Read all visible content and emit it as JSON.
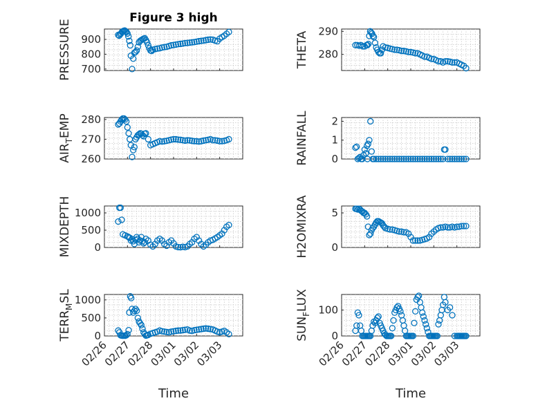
{
  "figure": {
    "title": "Figure 3 high",
    "xlabel": "Time",
    "x_ticks": [
      "02/26",
      "02/27",
      "02/28",
      "03/01",
      "03/02",
      "03/03"
    ]
  },
  "chart_data": [
    {
      "type": "scatter",
      "panel": "left-1",
      "ylabel": "PRESSURE",
      "ylim": [
        690,
        970
      ],
      "yticks": [
        700,
        800,
        900
      ],
      "xlim": [
        0,
        6
      ],
      "x": [
        0.6,
        0.64,
        0.68,
        0.72,
        0.76,
        0.8,
        0.84,
        0.88,
        0.92,
        0.96,
        1.0,
        1.04,
        1.08,
        1.12,
        1.15,
        1.2,
        1.25,
        1.3,
        1.35,
        1.4,
        1.45,
        1.5,
        1.55,
        1.6,
        1.65,
        1.7,
        1.75,
        1.8,
        1.85,
        1.9,
        1.95,
        2.0,
        2.05,
        2.1,
        2.2,
        2.3,
        2.4,
        2.5,
        2.6,
        2.7,
        2.8,
        2.9,
        3.0,
        3.1,
        3.2,
        3.3,
        3.4,
        3.5,
        3.6,
        3.7,
        3.8,
        3.9,
        4.0,
        4.1,
        4.2,
        4.3,
        4.4,
        4.5,
        4.6,
        4.7,
        4.8,
        4.9,
        5.0,
        5.1,
        5.2,
        5.3,
        5.4
      ],
      "y": [
        930,
        925,
        935,
        940,
        950,
        955,
        958,
        960,
        955,
        950,
        940,
        920,
        890,
        860,
        790,
        700,
        770,
        810,
        815,
        825,
        850,
        880,
        890,
        895,
        900,
        905,
        908,
        895,
        880,
        860,
        840,
        825,
        822,
        830,
        835,
        838,
        840,
        845,
        848,
        850,
        855,
        860,
        862,
        865,
        868,
        870,
        872,
        875,
        876,
        878,
        880,
        882,
        885,
        888,
        890,
        892,
        895,
        898,
        900,
        898,
        892,
        888,
        905,
        915,
        925,
        938,
        950
      ]
    },
    {
      "type": "scatter",
      "panel": "right-1",
      "ylabel": "THETA",
      "ylim": [
        273,
        291
      ],
      "yticks": [
        280,
        290
      ],
      "xlim": [
        0,
        6
      ],
      "x": [
        0.6,
        0.68,
        0.76,
        0.84,
        0.92,
        1.0,
        1.08,
        1.12,
        1.16,
        1.2,
        1.24,
        1.28,
        1.32,
        1.36,
        1.4,
        1.45,
        1.5,
        1.55,
        1.6,
        1.65,
        1.7,
        1.75,
        1.8,
        1.9,
        2.0,
        2.1,
        2.2,
        2.3,
        2.4,
        2.5,
        2.6,
        2.7,
        2.8,
        2.9,
        3.0,
        3.1,
        3.2,
        3.3,
        3.4,
        3.5,
        3.6,
        3.7,
        3.8,
        3.9,
        4.0,
        4.1,
        4.2,
        4.3,
        4.4,
        4.5,
        4.6,
        4.7,
        4.8,
        4.9,
        5.0,
        5.1,
        5.2,
        5.3,
        5.4
      ],
      "y": [
        284,
        284,
        283.8,
        284,
        283.5,
        283.5,
        284,
        284,
        284.5,
        288,
        290,
        289.5,
        289,
        288,
        287.5,
        285,
        283,
        282,
        281,
        280.5,
        280.5,
        282,
        283.5,
        283,
        282.8,
        282.5,
        282.3,
        282,
        282,
        281.8,
        281.5,
        281.5,
        281.3,
        281,
        281,
        280.8,
        280.5,
        280.5,
        280,
        279.5,
        279,
        279,
        278.5,
        278,
        278,
        277.5,
        277,
        277,
        276.5,
        277,
        277,
        276.8,
        276.5,
        276.5,
        276.5,
        276,
        275.5,
        275,
        274
      ]
    },
    {
      "type": "scatter",
      "panel": "left-2",
      "ylabel": "AIR_TEMP",
      "ylim": [
        260,
        281
      ],
      "yticks": [
        260,
        270,
        280
      ],
      "xlim": [
        0,
        6
      ],
      "x": [
        0.6,
        0.65,
        0.7,
        0.75,
        0.8,
        0.85,
        0.9,
        0.95,
        1.0,
        1.05,
        1.1,
        1.15,
        1.2,
        1.25,
        1.3,
        1.35,
        1.4,
        1.45,
        1.5,
        1.55,
        1.6,
        1.65,
        1.7,
        1.75,
        1.8,
        1.9,
        2.0,
        2.1,
        2.2,
        2.3,
        2.4,
        2.5,
        2.6,
        2.7,
        2.8,
        2.9,
        3.0,
        3.1,
        3.2,
        3.3,
        3.4,
        3.5,
        3.6,
        3.7,
        3.8,
        3.9,
        4.0,
        4.1,
        4.2,
        4.3,
        4.4,
        4.5,
        4.6,
        4.7,
        4.8,
        4.9,
        5.0,
        5.1,
        5.2,
        5.3,
        5.4
      ],
      "y": [
        277.5,
        278,
        279,
        280,
        280.5,
        280.5,
        280,
        279,
        276,
        273,
        270,
        267,
        261,
        264.5,
        266,
        270,
        271,
        272,
        272.5,
        273,
        272.8,
        272,
        271.5,
        272.8,
        273,
        270,
        267,
        267.5,
        268,
        268.5,
        269,
        268.8,
        269,
        269.2,
        269.5,
        269.8,
        270,
        270,
        269.8,
        269.7,
        269.5,
        269.3,
        269.5,
        269.4,
        269.2,
        269,
        269,
        268.8,
        269,
        269.3,
        269.5,
        269.7,
        270,
        269.5,
        269.5,
        269.3,
        269,
        269,
        269.2,
        269.5,
        270
      ]
    },
    {
      "type": "scatter",
      "panel": "right-2",
      "ylabel": "RAINFALL",
      "ylim": [
        0,
        2.2
      ],
      "yticks": [
        0,
        1,
        2
      ],
      "xlim": [
        0,
        6
      ],
      "x": [
        0.6,
        0.65,
        0.7,
        0.75,
        0.8,
        0.85,
        0.9,
        0.95,
        1.0,
        1.05,
        1.1,
        1.12,
        1.15,
        1.2,
        1.25,
        1.3,
        1.35,
        1.4,
        1.5,
        1.6,
        1.7,
        1.8,
        1.9,
        2.0,
        2.1,
        2.2,
        2.3,
        2.4,
        2.5,
        2.6,
        2.7,
        2.8,
        2.9,
        3.0,
        3.1,
        3.2,
        3.3,
        3.4,
        3.5,
        3.6,
        3.7,
        3.8,
        3.9,
        4.0,
        4.1,
        4.2,
        4.3,
        4.4,
        4.45,
        4.5,
        4.6,
        4.7,
        4.8,
        4.9,
        5.0,
        5.1,
        5.2,
        5.3,
        5.4
      ],
      "y": [
        0.6,
        0.65,
        0,
        0.05,
        0.1,
        0,
        0,
        0.2,
        0.5,
        0.3,
        0.7,
        0,
        0.8,
        1.0,
        2.0,
        0.4,
        0,
        0,
        0,
        0,
        0,
        0,
        0,
        0,
        0,
        0,
        0,
        0,
        0,
        0,
        0,
        0,
        0,
        0,
        0,
        0,
        0,
        0,
        0,
        0,
        0,
        0,
        0,
        0,
        0,
        0,
        0,
        0,
        0.5,
        0.5,
        0,
        0,
        0,
        0,
        0,
        0,
        0,
        0,
        0
      ]
    },
    {
      "type": "scatter",
      "panel": "left-3",
      "ylabel": "MIXDEPTH",
      "ylim": [
        0,
        1200
      ],
      "yticks": [
        0,
        500,
        1000
      ],
      "xlim": [
        0,
        6
      ],
      "x": [
        0.6,
        0.65,
        0.7,
        0.75,
        0.8,
        0.9,
        1.0,
        1.05,
        1.1,
        1.15,
        1.2,
        1.25,
        1.3,
        1.35,
        1.4,
        1.45,
        1.5,
        1.55,
        1.6,
        1.65,
        1.7,
        1.75,
        1.8,
        1.9,
        2.0,
        2.1,
        2.2,
        2.3,
        2.4,
        2.5,
        2.6,
        2.7,
        2.8,
        2.9,
        3.0,
        3.1,
        3.2,
        3.3,
        3.4,
        3.5,
        3.6,
        3.7,
        3.8,
        3.9,
        4.0,
        4.1,
        4.2,
        4.3,
        4.4,
        4.5,
        4.6,
        4.7,
        4.8,
        4.9,
        5.0,
        5.1,
        5.2,
        5.3,
        5.4
      ],
      "y": [
        750,
        1150,
        1150,
        800,
        380,
        350,
        320,
        300,
        280,
        200,
        240,
        180,
        100,
        220,
        300,
        250,
        150,
        200,
        300,
        180,
        120,
        150,
        250,
        200,
        80,
        30,
        100,
        200,
        250,
        200,
        100,
        50,
        150,
        200,
        120,
        30,
        10,
        5,
        20,
        10,
        30,
        100,
        150,
        250,
        300,
        200,
        100,
        30,
        80,
        150,
        200,
        220,
        260,
        300,
        350,
        400,
        500,
        600,
        650
      ]
    },
    {
      "type": "scatter",
      "panel": "right-3",
      "ylabel": "H2OMIXRA",
      "ylim": [
        0,
        6
      ],
      "yticks": [
        0,
        5
      ],
      "xlim": [
        0,
        6
      ],
      "x": [
        0.6,
        0.65,
        0.7,
        0.75,
        0.8,
        0.85,
        0.9,
        0.95,
        1.0,
        1.05,
        1.1,
        1.15,
        1.2,
        1.25,
        1.3,
        1.35,
        1.4,
        1.45,
        1.5,
        1.55,
        1.6,
        1.65,
        1.7,
        1.75,
        1.8,
        1.85,
        1.9,
        2.0,
        2.1,
        2.2,
        2.3,
        2.4,
        2.5,
        2.6,
        2.7,
        2.8,
        2.9,
        3.0,
        3.1,
        3.2,
        3.3,
        3.4,
        3.5,
        3.6,
        3.7,
        3.8,
        3.9,
        4.0,
        4.1,
        4.2,
        4.3,
        4.4,
        4.5,
        4.6,
        4.7,
        4.8,
        4.9,
        5.0,
        5.1,
        5.2,
        5.3,
        5.4
      ],
      "y": [
        5.6,
        5.6,
        5.5,
        5.6,
        5.5,
        5.3,
        5.2,
        5.0,
        5.0,
        4.8,
        4.5,
        3.0,
        1.8,
        2.0,
        2.5,
        2.8,
        3.0,
        3.3,
        3.6,
        3.8,
        3.8,
        3.7,
        3.6,
        3.5,
        3.2,
        3.0,
        2.8,
        2.7,
        2.6,
        2.6,
        2.5,
        2.4,
        2.3,
        2.3,
        2.2,
        2.2,
        2.0,
        1.5,
        1.0,
        1.0,
        1.0,
        1.0,
        1.1,
        1.2,
        1.3,
        1.5,
        2.0,
        2.3,
        2.6,
        2.8,
        2.9,
        2.9,
        3.0,
        2.9,
        2.9,
        3.0,
        2.9,
        3.0,
        3.0,
        3.1,
        3.1,
        3.1
      ]
    },
    {
      "type": "scatter",
      "panel": "left-4",
      "ylabel": "TERR_MSL",
      "ylim": [
        0,
        1150
      ],
      "yticks": [
        0,
        500,
        1000
      ],
      "xlim": [
        0,
        6
      ],
      "x": [
        0.6,
        0.65,
        0.7,
        0.75,
        0.8,
        0.85,
        0.9,
        0.95,
        1.0,
        1.05,
        1.08,
        1.12,
        1.16,
        1.2,
        1.25,
        1.3,
        1.35,
        1.4,
        1.45,
        1.5,
        1.55,
        1.6,
        1.65,
        1.7,
        1.75,
        1.8,
        1.85,
        1.9,
        2.0,
        2.1,
        2.2,
        2.3,
        2.4,
        2.5,
        2.6,
        2.7,
        2.8,
        2.9,
        3.0,
        3.1,
        3.2,
        3.3,
        3.4,
        3.5,
        3.6,
        3.7,
        3.8,
        3.9,
        4.0,
        4.1,
        4.2,
        4.3,
        4.4,
        4.5,
        4.6,
        4.7,
        4.8,
        4.9,
        5.0,
        5.1,
        5.2,
        5.3,
        5.4
      ],
      "y": [
        150,
        100,
        20,
        10,
        5,
        10,
        5,
        20,
        50,
        160,
        650,
        1100,
        1050,
        750,
        650,
        700,
        750,
        700,
        500,
        400,
        350,
        300,
        200,
        100,
        50,
        10,
        20,
        30,
        60,
        80,
        100,
        120,
        150,
        130,
        120,
        110,
        100,
        120,
        130,
        140,
        150,
        150,
        160,
        170,
        180,
        150,
        140,
        160,
        170,
        180,
        190,
        200,
        210,
        200,
        190,
        180,
        150,
        120,
        100,
        120,
        140,
        100,
        50
      ]
    },
    {
      "type": "scatter",
      "panel": "right-4",
      "ylabel": "SUN_FLUX",
      "ylim": [
        0,
        160
      ],
      "yticks": [
        0,
        100
      ],
      "xlim": [
        0,
        6
      ],
      "x": [
        0.6,
        0.65,
        0.7,
        0.75,
        0.8,
        0.85,
        0.9,
        0.95,
        1.0,
        1.05,
        1.1,
        1.15,
        1.2,
        1.25,
        1.3,
        1.35,
        1.4,
        1.45,
        1.5,
        1.55,
        1.6,
        1.65,
        1.7,
        1.75,
        1.8,
        1.85,
        1.9,
        1.95,
        2.0,
        2.05,
        2.1,
        2.15,
        2.2,
        2.25,
        2.3,
        2.35,
        2.4,
        2.45,
        2.5,
        2.55,
        2.6,
        2.65,
        2.7,
        2.75,
        2.8,
        2.85,
        2.9,
        2.95,
        3.0,
        3.05,
        3.1,
        3.15,
        3.2,
        3.25,
        3.3,
        3.35,
        3.4,
        3.45,
        3.5,
        3.55,
        3.6,
        3.65,
        3.7,
        3.75,
        3.8,
        3.85,
        3.9,
        3.95,
        4.0,
        4.05,
        4.1,
        4.15,
        4.2,
        4.25,
        4.3,
        4.35,
        4.4,
        4.45,
        4.5,
        4.6,
        4.7,
        4.8,
        4.9,
        5.0,
        5.05,
        5.1,
        5.15,
        5.2,
        5.25,
        5.3,
        5.35,
        5.4
      ],
      "y": [
        20,
        40,
        90,
        80,
        40,
        20,
        0,
        0,
        0,
        0,
        0,
        0,
        0,
        0,
        20,
        40,
        55,
        50,
        60,
        70,
        75,
        50,
        40,
        30,
        20,
        10,
        5,
        0,
        0,
        0,
        0,
        0,
        30,
        60,
        90,
        100,
        110,
        115,
        105,
        95,
        80,
        60,
        40,
        20,
        0,
        0,
        0,
        0,
        0,
        0,
        0,
        50,
        95,
        140,
        150,
        155,
        130,
        110,
        90,
        75,
        60,
        45,
        30,
        15,
        0,
        0,
        0,
        0,
        0,
        0,
        0,
        0,
        45,
        60,
        80,
        100,
        120,
        150,
        130,
        100,
        110,
        80,
        0,
        0,
        0,
        0,
        0,
        0,
        0,
        0,
        0,
        0
      ]
    }
  ]
}
